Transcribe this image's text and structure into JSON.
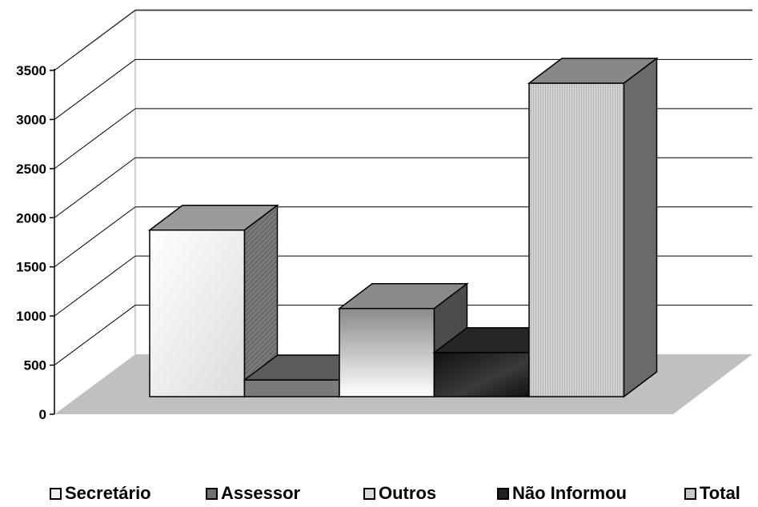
{
  "chart_data": {
    "type": "bar",
    "style": "3d-column",
    "categories": [
      "Secretário",
      "Assessor",
      "Outros",
      "Não Informou",
      "Total"
    ],
    "values": [
      1700,
      170,
      900,
      450,
      3200
    ],
    "ylim": [
      0,
      3500
    ],
    "yticks": [
      "0",
      "500",
      "1000",
      "1500",
      "2000",
      "2500",
      "3000",
      "3500"
    ],
    "grid": true,
    "legend": "bottom",
    "series": [
      {
        "name": "Secretário",
        "value": 1700,
        "color": "#eeeeee"
      },
      {
        "name": "Assessor",
        "value": 170,
        "color": "#707070"
      },
      {
        "name": "Outros",
        "value": 900,
        "color": "#d8d8d8"
      },
      {
        "name": "Não Informou",
        "value": 450,
        "color": "#202020"
      },
      {
        "name": "Total",
        "value": 3200,
        "color": "#c8c8c8"
      }
    ]
  },
  "legend": {
    "items": [
      "Secretário",
      "Assessor",
      "Outros",
      "Não Informou",
      "Total"
    ]
  }
}
